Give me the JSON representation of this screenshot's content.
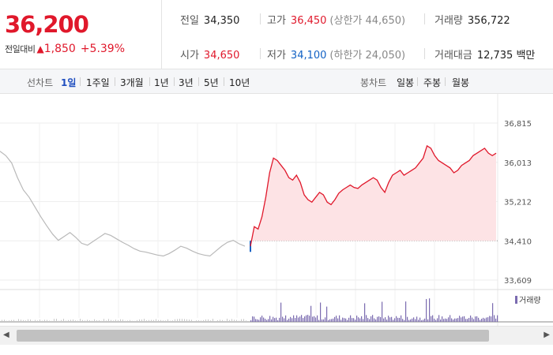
{
  "quote": {
    "price": "36,200",
    "change_label": "전일대비",
    "change_arrow": "▲",
    "change_amount": "1,850",
    "change_pct": "+5.39%",
    "prev_close": {
      "label": "전일",
      "value": "34,350"
    },
    "open": {
      "label": "시가",
      "value": "34,650"
    },
    "high": {
      "label": "고가",
      "value": "36,450",
      "note": "(상한가 44,650)"
    },
    "low": {
      "label": "저가",
      "value": "34,100",
      "note": "(하한가 24,050)"
    },
    "volume": {
      "label": "거래량",
      "value": "356,722"
    },
    "trade_value": {
      "label": "거래대금",
      "value": "12,735 백만"
    }
  },
  "period_bar": {
    "line_chart_label": "선차트",
    "line_periods": [
      "1일",
      "1주일",
      "3개월",
      "1년",
      "3년",
      "5년",
      "10년"
    ],
    "active_period": "1일",
    "candle_chart_label": "봉차트",
    "candle_periods": [
      "일봉",
      "주봉",
      "월봉"
    ]
  },
  "colors": {
    "up": "#e0182b",
    "down": "#1261c4",
    "prev_day_line": "#b9b9b9",
    "area_fill": "#fde3e5",
    "volume_bar": "#7b6bb0"
  },
  "chart_data": {
    "type": "line",
    "title": "",
    "xlabel": "",
    "ylabel": "",
    "y_ticks": [
      "36,815",
      "36,013",
      "35,212",
      "34,410",
      "33,609"
    ],
    "ylim": [
      33609,
      36815
    ],
    "baseline": 34410,
    "series": [
      {
        "description_segment": "previous-day",
        "values": [
          36240,
          36150,
          36000,
          35700,
          35450,
          35300,
          35100,
          34900,
          34720,
          34550,
          34420,
          34500,
          34580,
          34480,
          34360,
          34320,
          34400,
          34480,
          34560,
          34520,
          34450,
          34380,
          34320,
          34250,
          34200,
          34180,
          34150,
          34120,
          34100,
          34150,
          34220,
          34300,
          34260,
          34200,
          34150,
          34120,
          34100,
          34200,
          34300,
          34380,
          34420,
          34350,
          34300
        ]
      },
      {
        "description_segment": "today",
        "values": [
          34300,
          34700,
          34650,
          34900,
          35300,
          35800,
          36100,
          36050,
          35950,
          35850,
          35700,
          35650,
          35750,
          35600,
          35350,
          35250,
          35200,
          35300,
          35400,
          35350,
          35200,
          35150,
          35250,
          35380,
          35450,
          35500,
          35550,
          35500,
          35480,
          35550,
          35600,
          35650,
          35700,
          35650,
          35500,
          35400,
          35600,
          35750,
          35800,
          35850,
          35750,
          35800,
          35850,
          35900,
          36000,
          36100,
          36350,
          36300,
          36150,
          36050,
          36000,
          35950,
          35900,
          35800,
          35850,
          35950,
          36000,
          36050,
          36150,
          36200,
          36250,
          36300,
          36200,
          36150,
          36200
        ]
      }
    ],
    "volume_label": "거래량"
  },
  "scrollbar": {
    "left_arrow": "◀",
    "right_arrow": "▶"
  }
}
